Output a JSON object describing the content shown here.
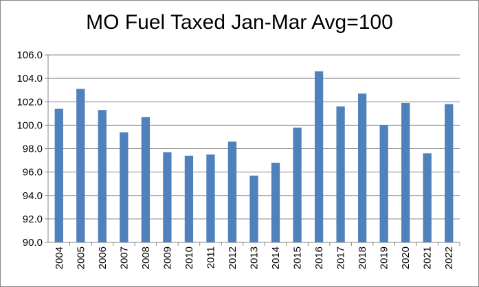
{
  "chart_data": {
    "type": "bar",
    "title": "MO Fuel Taxed Jan-Mar Avg=100",
    "xlabel": "",
    "ylabel": "",
    "categories": [
      "2004",
      "2005",
      "2006",
      "2007",
      "2008",
      "2009",
      "2010",
      "2011",
      "2012",
      "2013",
      "2014",
      "2015",
      "2016",
      "2017",
      "2018",
      "2019",
      "2020",
      "2021",
      "2022"
    ],
    "values": [
      101.4,
      103.1,
      101.3,
      99.4,
      100.7,
      97.7,
      97.4,
      97.5,
      98.6,
      95.7,
      96.8,
      99.8,
      104.6,
      101.6,
      102.7,
      100.0,
      101.9,
      97.6,
      101.8
    ],
    "ylim": [
      90.0,
      106.0
    ],
    "yticks": [
      "90.0",
      "92.0",
      "94.0",
      "96.0",
      "98.0",
      "100.0",
      "102.0",
      "104.0",
      "106.0"
    ],
    "grid": true,
    "legend": "none",
    "colors": {
      "bar": "#4F81BD",
      "grid": "#868686",
      "axis": "#868686"
    }
  }
}
